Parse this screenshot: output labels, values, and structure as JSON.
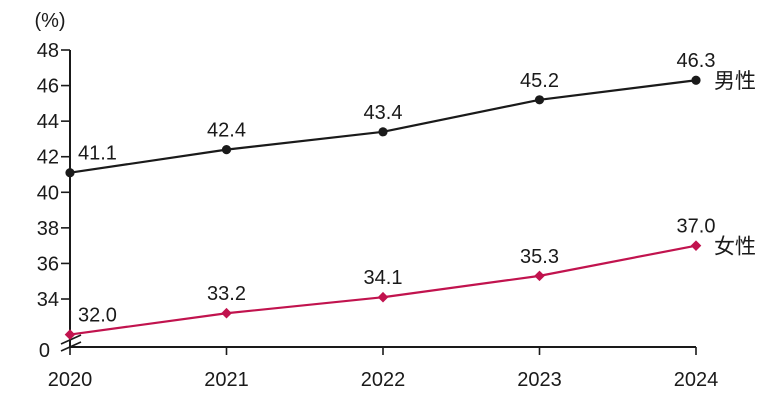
{
  "page": {
    "background": "#ffffff"
  },
  "chart_data": {
    "type": "line",
    "title": "",
    "unit_label": "(%)",
    "categories": [
      "2020",
      "2021",
      "2022",
      "2023",
      "2024"
    ],
    "series": [
      {
        "name": "男性",
        "values": [
          41.1,
          42.4,
          43.4,
          45.2,
          46.3
        ],
        "data_labels": [
          "41.1",
          "42.4",
          "43.4",
          "45.2",
          "46.3"
        ],
        "color": "#1a1a1a",
        "marker": "circle"
      },
      {
        "name": "女性",
        "values": [
          32.0,
          33.2,
          34.1,
          35.3,
          37.0
        ],
        "data_labels": [
          "32.0",
          "33.2",
          "34.1",
          "35.3",
          "37.0"
        ],
        "color": "#c1134e",
        "marker": "diamond"
      }
    ],
    "y_axis": {
      "tick_values": [
        48,
        46,
        44,
        42,
        40,
        38,
        36,
        34
      ],
      "tick_labels": [
        "48",
        "46",
        "44",
        "42",
        "40",
        "38",
        "36",
        "34"
      ],
      "zero_label": "0",
      "axis_break": true,
      "displayed_range": [
        32,
        48
      ]
    },
    "x_axis": {
      "tick_labels": [
        "2020",
        "2021",
        "2022",
        "2023",
        "2024"
      ]
    },
    "grid": false,
    "legend_position": "right-of-last-point",
    "axis_color": "#1a1a1a"
  }
}
